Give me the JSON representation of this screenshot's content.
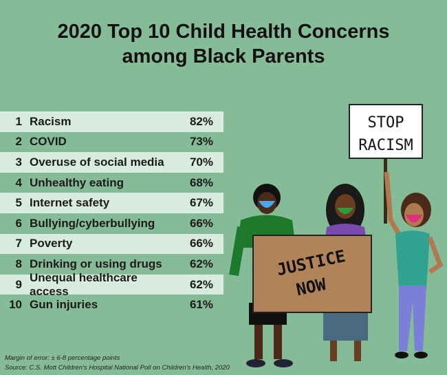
{
  "title_line1": "2020 Top 10 Child Health Concerns",
  "title_line2": "among Black Parents",
  "rows": [
    {
      "rank": "1",
      "label": "Racism",
      "pct": "82%"
    },
    {
      "rank": "2",
      "label": "COVID",
      "pct": "73%"
    },
    {
      "rank": "3",
      "label": "Overuse of social media",
      "pct": "70%"
    },
    {
      "rank": "4",
      "label": "Unhealthy eating",
      "pct": "68%"
    },
    {
      "rank": "5",
      "label": "Internet safety",
      "pct": "67%"
    },
    {
      "rank": "6",
      "label": "Bullying/cyberbullying",
      "pct": "66%"
    },
    {
      "rank": "7",
      "label": "Poverty",
      "pct": "66%"
    },
    {
      "rank": "8",
      "label": "Drinking or using drugs",
      "pct": "62%"
    },
    {
      "rank": "9",
      "label": "Unequal healthcare access",
      "pct": "62%"
    },
    {
      "rank": "10",
      "label": "Gun injuries",
      "pct": "61%"
    }
  ],
  "notes": {
    "margin": "Margin of error: ± 6-8 percentage points",
    "source": "Source: C.S. Mott Children's Hospital National Poll on Children's Health, 2020"
  },
  "signs": {
    "stop_line1": "STOP",
    "stop_line2": "RACISM",
    "justice_line1": "JUSTICE",
    "justice_line2": "NOW"
  },
  "colors": {
    "background": "#86bb98",
    "row_light": "#d9eadf",
    "sign_brown": "#b08458"
  }
}
